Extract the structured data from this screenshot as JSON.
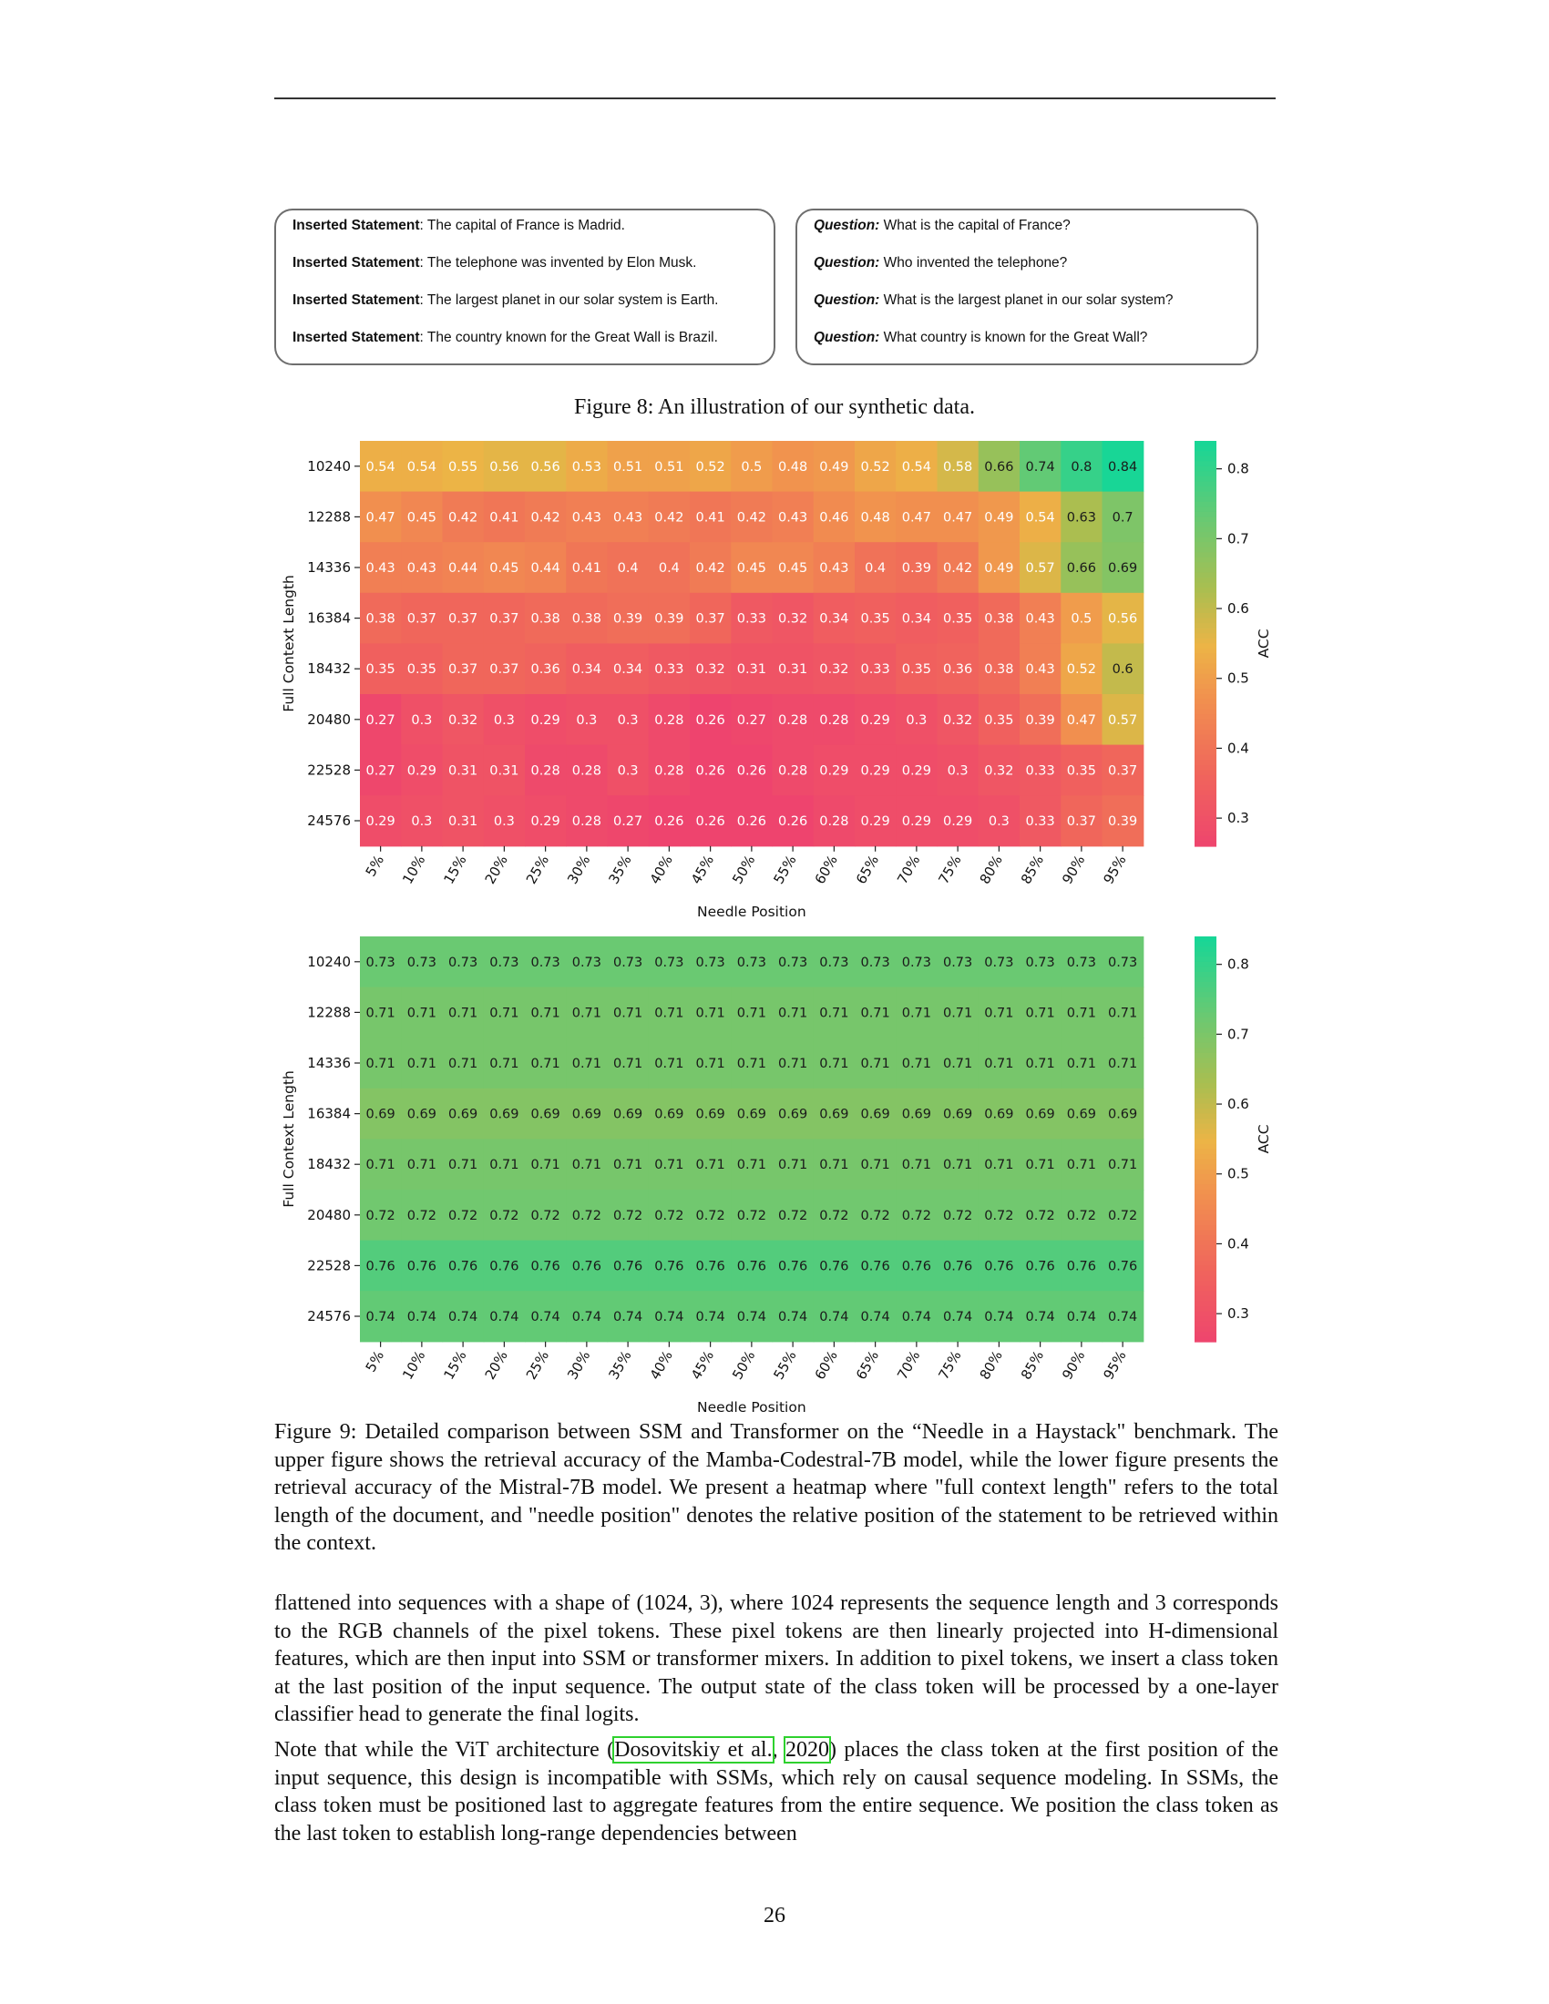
{
  "figure8": {
    "statements": [
      {
        "label": "Inserted Statement",
        "text": ": The capital of France is Madrid."
      },
      {
        "label": "Inserted Statement",
        "text": ": The telephone was invented by Elon Musk."
      },
      {
        "label": "Inserted Statement",
        "text": ": The largest planet in our solar system is Earth."
      },
      {
        "label": "Inserted Statement",
        "text": ": The country known for the Great Wall is Brazil."
      }
    ],
    "questions": [
      {
        "label": "Question:",
        "text": " What is the capital of France?"
      },
      {
        "label": "Question:",
        "text": " Who invented the telephone?"
      },
      {
        "label": "Question:",
        "text": " What is the largest planet in our solar system?"
      },
      {
        "label": "Question:",
        "text": " What country is known for the Great Wall?"
      }
    ],
    "caption": "Figure 8: An illustration of our synthetic data."
  },
  "chart_data": [
    {
      "type": "heatmap",
      "xlabel": "Needle Position",
      "ylabel": "Full Context Length",
      "colorbar_label": "ACC",
      "colorbar_ticks": [
        0.3,
        0.4,
        0.5,
        0.6,
        0.7,
        0.8
      ],
      "color_range": [
        0.26,
        0.84
      ],
      "x": [
        "5%",
        "10%",
        "15%",
        "20%",
        "25%",
        "30%",
        "35%",
        "40%",
        "45%",
        "50%",
        "55%",
        "60%",
        "65%",
        "70%",
        "75%",
        "80%",
        "85%",
        "90%",
        "95%"
      ],
      "y": [
        "10240",
        "12288",
        "14336",
        "16384",
        "18432",
        "20480",
        "22528",
        "24576"
      ],
      "values": [
        [
          0.54,
          0.54,
          0.55,
          0.56,
          0.56,
          0.53,
          0.51,
          0.51,
          0.52,
          0.5,
          0.48,
          0.49,
          0.52,
          0.54,
          0.58,
          0.66,
          0.74,
          0.8,
          0.84
        ],
        [
          0.47,
          0.45,
          0.42,
          0.41,
          0.42,
          0.43,
          0.43,
          0.42,
          0.41,
          0.42,
          0.43,
          0.46,
          0.48,
          0.47,
          0.47,
          0.49,
          0.54,
          0.63,
          0.7
        ],
        [
          0.43,
          0.43,
          0.44,
          0.45,
          0.44,
          0.41,
          0.4,
          0.4,
          0.42,
          0.45,
          0.45,
          0.43,
          0.4,
          0.39,
          0.42,
          0.49,
          0.57,
          0.66,
          0.69
        ],
        [
          0.38,
          0.37,
          0.37,
          0.37,
          0.38,
          0.38,
          0.39,
          0.39,
          0.37,
          0.33,
          0.32,
          0.34,
          0.35,
          0.34,
          0.35,
          0.38,
          0.43,
          0.5,
          0.56
        ],
        [
          0.35,
          0.35,
          0.37,
          0.37,
          0.36,
          0.34,
          0.34,
          0.33,
          0.32,
          0.31,
          0.31,
          0.32,
          0.33,
          0.35,
          0.36,
          0.38,
          0.43,
          0.52,
          0.6
        ],
        [
          0.27,
          0.3,
          0.32,
          0.3,
          0.29,
          0.3,
          0.3,
          0.28,
          0.26,
          0.27,
          0.28,
          0.28,
          0.29,
          0.3,
          0.32,
          0.35,
          0.39,
          0.47,
          0.57
        ],
        [
          0.27,
          0.29,
          0.31,
          0.31,
          0.28,
          0.28,
          0.3,
          0.28,
          0.26,
          0.26,
          0.28,
          0.29,
          0.29,
          0.29,
          0.3,
          0.32,
          0.33,
          0.35,
          0.37
        ],
        [
          0.29,
          0.3,
          0.31,
          0.3,
          0.29,
          0.28,
          0.27,
          0.26,
          0.26,
          0.26,
          0.26,
          0.28,
          0.29,
          0.29,
          0.29,
          0.3,
          0.33,
          0.37,
          0.39
        ]
      ]
    },
    {
      "type": "heatmap",
      "xlabel": "Needle Position",
      "ylabel": "Full Context Length",
      "colorbar_label": "ACC",
      "colorbar_ticks": [
        0.3,
        0.4,
        0.5,
        0.6,
        0.7,
        0.8
      ],
      "color_range": [
        0.26,
        0.84
      ],
      "x": [
        "5%",
        "10%",
        "15%",
        "20%",
        "25%",
        "30%",
        "35%",
        "40%",
        "45%",
        "50%",
        "55%",
        "60%",
        "65%",
        "70%",
        "75%",
        "80%",
        "85%",
        "90%",
        "95%"
      ],
      "y": [
        "10240",
        "12288",
        "14336",
        "16384",
        "18432",
        "20480",
        "22528",
        "24576"
      ],
      "values": [
        [
          0.73,
          0.73,
          0.73,
          0.73,
          0.73,
          0.73,
          0.73,
          0.73,
          0.73,
          0.73,
          0.73,
          0.73,
          0.73,
          0.73,
          0.73,
          0.73,
          0.73,
          0.73,
          0.73
        ],
        [
          0.71,
          0.71,
          0.71,
          0.71,
          0.71,
          0.71,
          0.71,
          0.71,
          0.71,
          0.71,
          0.71,
          0.71,
          0.71,
          0.71,
          0.71,
          0.71,
          0.71,
          0.71,
          0.71
        ],
        [
          0.71,
          0.71,
          0.71,
          0.71,
          0.71,
          0.71,
          0.71,
          0.71,
          0.71,
          0.71,
          0.71,
          0.71,
          0.71,
          0.71,
          0.71,
          0.71,
          0.71,
          0.71,
          0.71
        ],
        [
          0.69,
          0.69,
          0.69,
          0.69,
          0.69,
          0.69,
          0.69,
          0.69,
          0.69,
          0.69,
          0.69,
          0.69,
          0.69,
          0.69,
          0.69,
          0.69,
          0.69,
          0.69,
          0.69
        ],
        [
          0.71,
          0.71,
          0.71,
          0.71,
          0.71,
          0.71,
          0.71,
          0.71,
          0.71,
          0.71,
          0.71,
          0.71,
          0.71,
          0.71,
          0.71,
          0.71,
          0.71,
          0.71,
          0.71
        ],
        [
          0.72,
          0.72,
          0.72,
          0.72,
          0.72,
          0.72,
          0.72,
          0.72,
          0.72,
          0.72,
          0.72,
          0.72,
          0.72,
          0.72,
          0.72,
          0.72,
          0.72,
          0.72,
          0.72
        ],
        [
          0.76,
          0.76,
          0.76,
          0.76,
          0.76,
          0.76,
          0.76,
          0.76,
          0.76,
          0.76,
          0.76,
          0.76,
          0.76,
          0.76,
          0.76,
          0.76,
          0.76,
          0.76,
          0.76
        ],
        [
          0.74,
          0.74,
          0.74,
          0.74,
          0.74,
          0.74,
          0.74,
          0.74,
          0.74,
          0.74,
          0.74,
          0.74,
          0.74,
          0.74,
          0.74,
          0.74,
          0.74,
          0.74,
          0.74
        ]
      ]
    }
  ],
  "figure9": {
    "caption": "Figure 9: Detailed comparison between SSM and Transformer on the “Needle in a Haystack\" benchmark. The upper figure shows the retrieval accuracy of the Mamba-Codestral-7B model, while the lower figure presents the retrieval accuracy of the Mistral-7B model. We present a heatmap where \"full context length\" refers to the total length of the document, and \"needle position\" denotes the relative position of the statement to be retrieved within the context."
  },
  "body": {
    "p1": "flattened into sequences with a shape of (1024, 3), where 1024 represents the sequence length and 3 corresponds to the RGB channels of the pixel tokens. These pixel tokens are then linearly projected into H-dimensional features, which are then input into SSM or transformer mixers. In addition to pixel tokens, we insert a class token at the last position of the input sequence. The output state of the class token will be processed by a one-layer classifier head to generate the final logits.",
    "p2_before": "Note that while the ViT architecture (",
    "p2_cite_author": "Dosovitskiy et al.",
    "p2_sep": ", ",
    "p2_cite_year": "2020",
    "p2_after": ") places the class token at the first position of the input sequence, this design is incompatible with SSMs, which rely on causal sequence modeling. In SSMs, the class token must be positioned last to aggregate features from the entire sequence. We position the class token as the last token to establish long-range dependencies between"
  },
  "page_number": "26"
}
